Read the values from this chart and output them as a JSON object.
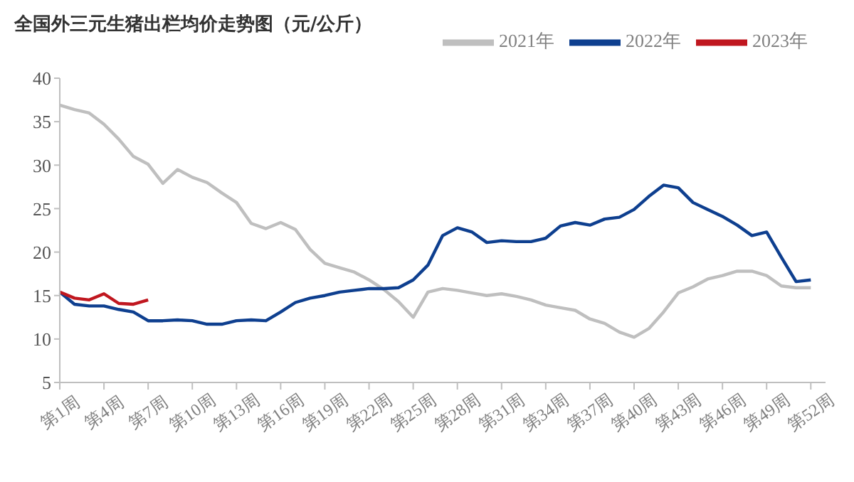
{
  "chart_data": {
    "type": "line",
    "title": "全国外三元生猪出栏均价走势图（元/公斤）",
    "categories": [
      "第1周",
      null,
      null,
      "第4周",
      null,
      null,
      "第7周",
      null,
      null,
      "第10周",
      null,
      null,
      "第13周",
      null,
      null,
      "第16周",
      null,
      null,
      "第19周",
      null,
      null,
      "第22周",
      null,
      null,
      "第25周",
      null,
      null,
      "第28周",
      null,
      null,
      "第31周",
      null,
      null,
      "第34周",
      null,
      null,
      "第37周",
      null,
      null,
      "第40周",
      null,
      null,
      "第43周",
      null,
      null,
      "第46周",
      null,
      null,
      "第49周",
      null,
      null,
      "第52周",
      null
    ],
    "series": [
      {
        "name": "2021年",
        "color": "#bfbfbf",
        "values": [
          36.9,
          36.4,
          36.0,
          34.7,
          33.0,
          31.0,
          30.1,
          27.9,
          29.5,
          28.6,
          28.0,
          26.8,
          25.7,
          23.3,
          22.7,
          23.4,
          22.6,
          20.3,
          18.7,
          18.2,
          17.7,
          16.8,
          15.7,
          14.3,
          12.5,
          15.4,
          15.8,
          15.6,
          15.3,
          15.0,
          15.2,
          14.9,
          14.5,
          13.9,
          13.6,
          13.3,
          12.3,
          11.8,
          10.8,
          10.2,
          11.2,
          13.1,
          15.3,
          16.0,
          16.9,
          17.3,
          17.8,
          17.8,
          17.3,
          16.1,
          15.9,
          15.9,
          null
        ]
      },
      {
        "name": "2022年",
        "color": "#0e3f8f",
        "values": [
          15.4,
          14.0,
          13.8,
          13.8,
          13.4,
          13.1,
          12.1,
          12.1,
          12.2,
          12.1,
          11.7,
          11.7,
          12.1,
          12.2,
          12.1,
          13.1,
          14.2,
          14.7,
          15.0,
          15.4,
          15.6,
          15.8,
          15.8,
          15.9,
          16.8,
          18.5,
          21.9,
          22.8,
          22.3,
          21.1,
          21.3,
          21.2,
          21.2,
          21.6,
          23.0,
          23.4,
          23.1,
          23.8,
          24.0,
          24.9,
          26.4,
          27.7,
          27.4,
          25.7,
          24.9,
          24.1,
          23.1,
          21.9,
          22.3,
          19.4,
          16.6,
          16.8,
          null
        ]
      },
      {
        "name": "2023年",
        "color": "#c0171f",
        "values": [
          15.4,
          14.7,
          14.5,
          15.2,
          14.1,
          14.0,
          14.5,
          null,
          null,
          null,
          null,
          null,
          null,
          null,
          null,
          null,
          null,
          null,
          null,
          null,
          null,
          null,
          null,
          null,
          null,
          null,
          null,
          null,
          null,
          null,
          null,
          null,
          null,
          null,
          null,
          null,
          null,
          null,
          null,
          null,
          null,
          null,
          null,
          null,
          null,
          null,
          null,
          null,
          null,
          null,
          null,
          null,
          null
        ]
      }
    ],
    "ylim": [
      5,
      40
    ],
    "yticks": [
      5,
      10,
      15,
      20,
      25,
      30,
      35,
      40
    ],
    "grid": false,
    "legend": "top",
    "marker": "none",
    "line_style": "solid"
  }
}
